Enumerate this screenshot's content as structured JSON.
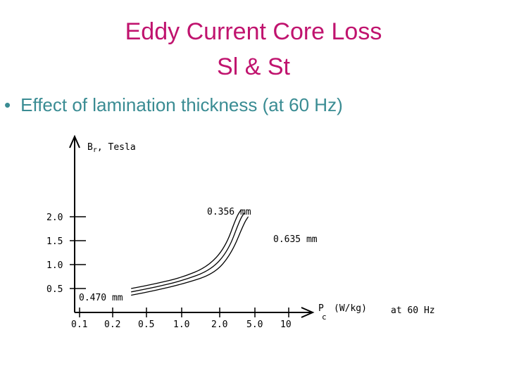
{
  "slide": {
    "title_line1": "Eddy Current Core Loss",
    "title_line2": "Sl & St",
    "bullet": "Effect of lamination thickness (at 60 Hz)",
    "title_color": "#c0136e",
    "bullet_color": "#3a8c93"
  },
  "chart_data": {
    "type": "line",
    "ylabel": "B, Tesla",
    "ylabel_sub": "r",
    "xlabel": "P",
    "xlabel_sub": "c",
    "xlabel_unit": "(W/kg)",
    "note": "at 60 Hz",
    "x_ticks": [
      "0.1",
      "0.2",
      "0.5",
      "1.0",
      "2.0",
      "5.0",
      "10"
    ],
    "x_tick_values": [
      0.1,
      0.2,
      0.5,
      1.0,
      2.0,
      5.0,
      10
    ],
    "y_ticks": [
      "0.5",
      "1.0",
      "1.5",
      "2.0"
    ],
    "y_tick_values": [
      0.5,
      1.0,
      1.5,
      2.0
    ],
    "x_scale": "log",
    "grid": false,
    "series": [
      {
        "name": "0.356 mm",
        "points": [
          [
            0.33,
            0.5
          ],
          [
            0.6,
            0.6
          ],
          [
            1.0,
            0.73
          ],
          [
            1.6,
            0.95
          ],
          [
            2.3,
            1.35
          ],
          [
            3.1,
            2.0
          ],
          [
            3.5,
            2.15
          ]
        ]
      },
      {
        "name": "0.470 mm",
        "points": [
          [
            0.33,
            0.43
          ],
          [
            0.6,
            0.53
          ],
          [
            1.0,
            0.66
          ],
          [
            1.7,
            0.88
          ],
          [
            2.5,
            1.29
          ],
          [
            3.4,
            1.95
          ],
          [
            3.8,
            2.08
          ]
        ]
      },
      {
        "name": "0.635 mm",
        "points": [
          [
            0.33,
            0.36
          ],
          [
            0.6,
            0.46
          ],
          [
            1.0,
            0.59
          ],
          [
            1.8,
            0.8
          ],
          [
            2.7,
            1.22
          ],
          [
            3.8,
            1.88
          ],
          [
            4.2,
            2.0
          ]
        ]
      }
    ]
  }
}
